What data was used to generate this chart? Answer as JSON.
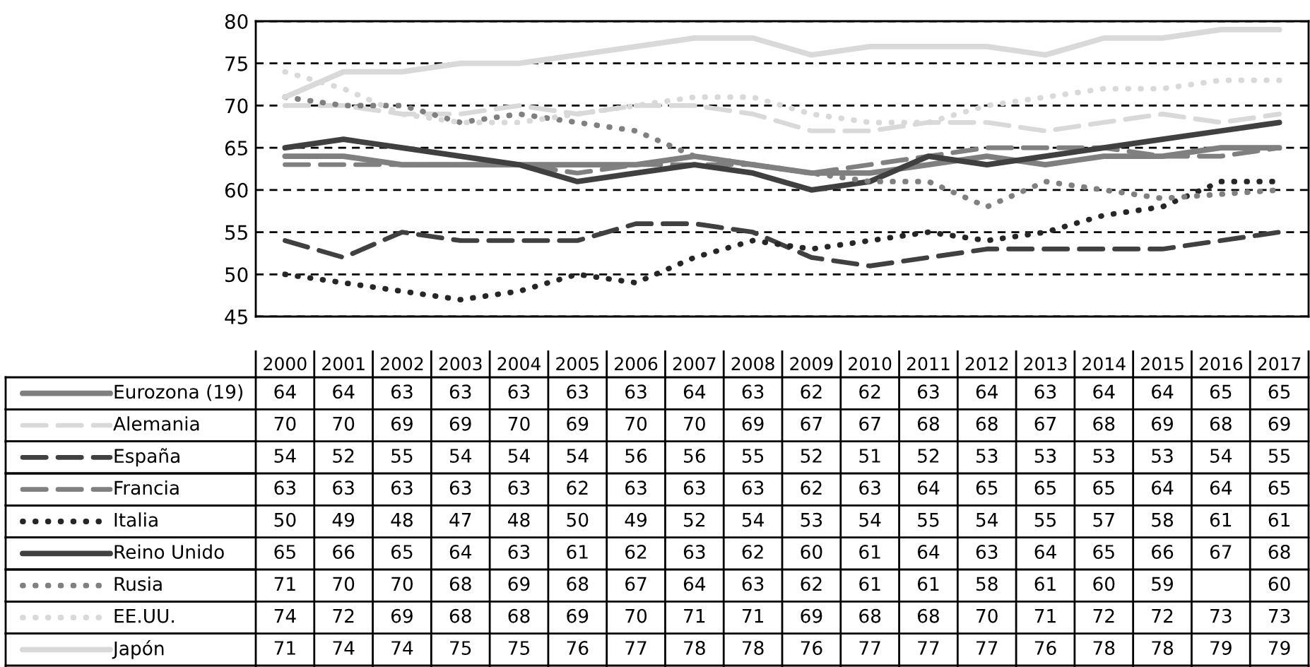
{
  "chart_data": {
    "type": "line",
    "categories": [
      "2000",
      "2001",
      "2002",
      "2003",
      "2004",
      "2005",
      "2006",
      "2007",
      "2008",
      "2009",
      "2010",
      "2011",
      "2012",
      "2013",
      "2014",
      "2015",
      "2016",
      "2017"
    ],
    "ylim": [
      45,
      80
    ],
    "yticks": [
      45,
      50,
      55,
      60,
      65,
      70,
      75,
      80
    ],
    "grid": "y",
    "legend": "bottom left",
    "data_labels": true,
    "series": [
      {
        "name": "Eurozona (19)",
        "color": "#7f7f7f",
        "line_style": "solid",
        "values": [
          64,
          64,
          63,
          63,
          63,
          63,
          63,
          64,
          63,
          62,
          62,
          63,
          64,
          63,
          64,
          64,
          65,
          65
        ]
      },
      {
        "name": "Alemania",
        "color": "#d9d9d9",
        "line_style": "dashed",
        "values": [
          70,
          70,
          69,
          69,
          70,
          69,
          70,
          70,
          69,
          67,
          67,
          68,
          68,
          67,
          68,
          69,
          68,
          69
        ]
      },
      {
        "name": "España",
        "color": "#404040",
        "line_style": "dashed",
        "values": [
          54,
          52,
          55,
          54,
          54,
          54,
          56,
          56,
          55,
          52,
          51,
          52,
          53,
          53,
          53,
          53,
          54,
          55
        ]
      },
      {
        "name": "Francia",
        "color": "#808080",
        "line_style": "dashed",
        "values": [
          63,
          63,
          63,
          63,
          63,
          62,
          63,
          63,
          63,
          62,
          63,
          64,
          65,
          65,
          65,
          64,
          64,
          65
        ]
      },
      {
        "name": "Italia",
        "color": "#262626",
        "line_style": "dotted",
        "values": [
          50,
          49,
          48,
          47,
          48,
          50,
          49,
          52,
          54,
          53,
          54,
          55,
          54,
          55,
          57,
          58,
          61,
          61
        ]
      },
      {
        "name": "Reino Unido",
        "color": "#404040",
        "line_style": "solid",
        "values": [
          65,
          66,
          65,
          64,
          63,
          61,
          62,
          63,
          62,
          60,
          61,
          64,
          63,
          64,
          65,
          66,
          67,
          68
        ]
      },
      {
        "name": "Rusia",
        "color": "#808080",
        "line_style": "dotted",
        "values": [
          71,
          70,
          70,
          68,
          69,
          68,
          67,
          64,
          63,
          62,
          61,
          61,
          58,
          61,
          60,
          59,
          null,
          60
        ]
      },
      {
        "name": "EE.UU.",
        "color": "#d9d9d9",
        "line_style": "dotted",
        "values": [
          74,
          72,
          69,
          68,
          68,
          69,
          70,
          71,
          71,
          69,
          68,
          68,
          70,
          71,
          72,
          72,
          73,
          73
        ]
      },
      {
        "name": "Japón",
        "color": "#d9d9d9",
        "line_style": "solid",
        "values": [
          71,
          74,
          74,
          75,
          75,
          76,
          77,
          78,
          78,
          76,
          77,
          77,
          77,
          76,
          78,
          78,
          79,
          79
        ]
      }
    ]
  }
}
